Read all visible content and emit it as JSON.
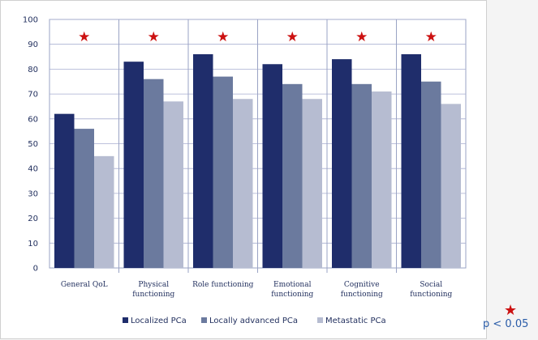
{
  "chart_data": {
    "type": "bar",
    "categories": [
      [
        "General QoL"
      ],
      [
        "Physical",
        "functioning"
      ],
      [
        "Role functioning"
      ],
      [
        "Emotional",
        "functioning"
      ],
      [
        "Cognitive",
        "functioning"
      ],
      [
        "Social",
        "functioning"
      ]
    ],
    "series": [
      {
        "name": "Localized PCa",
        "color": "#1f2d6b",
        "values": [
          62,
          83,
          86,
          82,
          84,
          86
        ]
      },
      {
        "name": "Locally advanced PCa",
        "color": "#6b7a9e",
        "values": [
          56,
          76,
          77,
          74,
          74,
          75
        ]
      },
      {
        "name": "Metastatic PCa",
        "color": "#b6bcd1",
        "values": [
          45,
          67,
          68,
          68,
          71,
          66
        ]
      }
    ],
    "significance": [
      true,
      true,
      true,
      true,
      true,
      true
    ],
    "ylim": [
      0,
      100
    ],
    "yticks": [
      0,
      10,
      20,
      30,
      40,
      50,
      60,
      70,
      80,
      90,
      100
    ],
    "grid": true,
    "legend_position": "bottom",
    "star_color": "#cc1111"
  },
  "key": {
    "star": "★",
    "text": "p < 0.05"
  }
}
